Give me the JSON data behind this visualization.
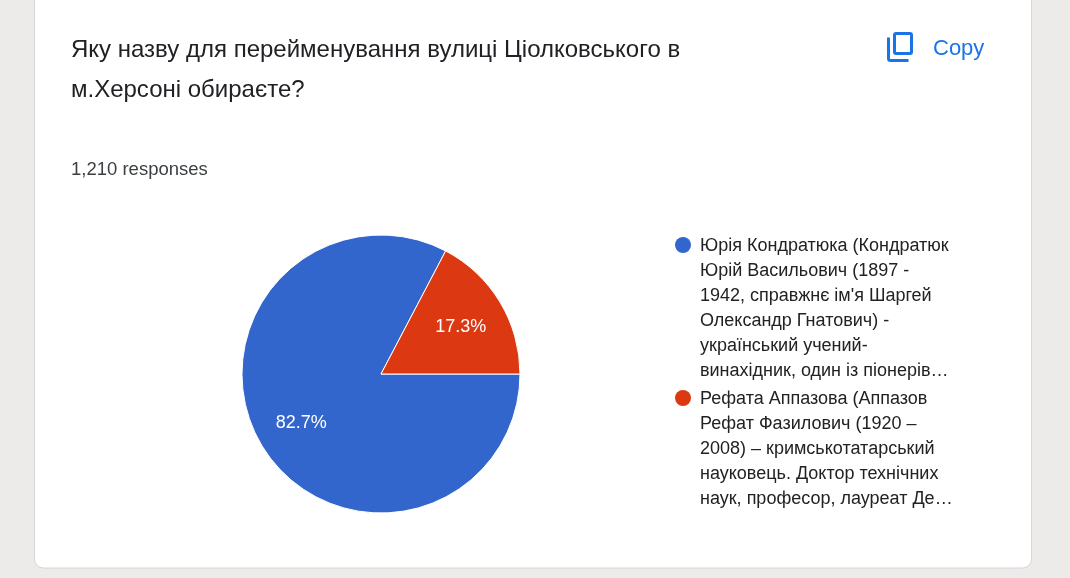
{
  "chart_data": {
    "type": "pie",
    "title": "Яку назву для перейменування вулиці Ціолковського в м.Херсоні обираєте?",
    "subtitle": "1,210 responses",
    "categories": [
      "Юрія Кондратюка (Кондратюк Юрій Васильович (1897 - 1942, справжнє ім'я Шаргей Олександр Гнатович) - український учений-винахідник, один із піонерів…",
      "Рефата Аппазова (Аппазов Рефат Фазилович (1920 – 2008) – кримськотатарський науковець. Доктор технічних наук, професор, лауреат Де…"
    ],
    "values": [
      82.7,
      17.3
    ],
    "colors": [
      "#3366cc",
      "#dc3912"
    ],
    "value_labels": [
      "82.7%",
      "17.3%"
    ],
    "legend": "right",
    "annotations": [
      "Copy"
    ]
  }
}
